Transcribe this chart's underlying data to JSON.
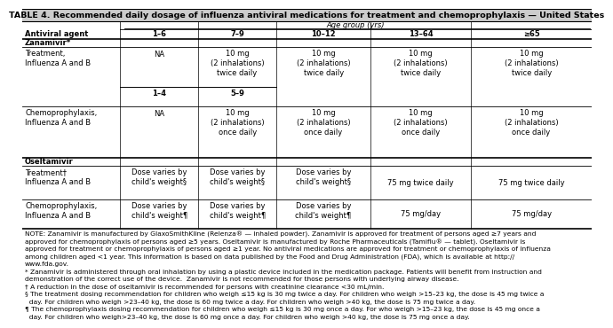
{
  "title": "TABLE 4. Recommended daily dosage of influenza antiviral medications for treatment and chemoprophylaxis — United States",
  "col_header_age": "Age group (yrs)",
  "col_headers": [
    "Antiviral agent",
    "1–6",
    "7–9",
    "10–12",
    "13–64",
    "≥65"
  ],
  "sub_headers_zanamivir": [
    "1–4",
    "5–9"
  ],
  "rows": [
    {
      "section": "Zanamivir*",
      "label": "Treatment,\nInfluenza A and B",
      "cells": [
        "NA",
        "10 mg\n(2 inhalations)\ntwice daily",
        "10 mg\n(2 inhalations)\ntwice daily",
        "10 mg\n(2 inhalations)\ntwice daily",
        "10 mg\n(2 inhalations)\ntwice daily"
      ]
    },
    {
      "section": null,
      "label": "Chemoprophylaxis,\nInfluenza A and B",
      "cells": [
        "NA",
        "10 mg\n(2 inhalations)\nonce daily",
        "10 mg\n(2 inhalations)\nonce daily",
        "10 mg\n(2 inhalations)\nonce daily",
        "10 mg\n(2 inhalations)\nonce daily"
      ]
    },
    {
      "section": "Oseltamivir",
      "label": "Treatment†\nInfluenza A and B",
      "cells": [
        "Dose varies by\nchild's weight§",
        "Dose varies by\nchild's weight§",
        "Dose varies by\nchild's weight§",
        "75 mg twice daily",
        "75 mg twice daily"
      ]
    },
    {
      "section": null,
      "label": "Chemoprophylaxis,\nInfluenza A and B",
      "cells": [
        "Dose varies by\nchild's weight¶",
        "Dose varies by\nchild's weight¶",
        "Dose varies by\nchild's weight¶",
        "75 mg/day",
        "75 mg/day"
      ]
    }
  ],
  "note_lines": [
    "NOTE: Zanamivir is manufactured by GlaxoSmithKline (Relenza® — inhaled powder). Zanamivir is approved for treatment of persons aged ≥7 years and",
    "approved for chemoprophylaxis of persons aged ≥5 years. Oseltamivir is manufactured by Roche Pharmaceuticals (Tamiflu® — tablet). Oseltamivir is",
    "approved for treatment or chemoprophylaxis of persons aged ≥1 year. No antiviral medications are approved for treatment or chemoprophylaxis of influenza",
    "among children aged <1 year. This information is based on data published by the Food and Drug Administration (FDA), which is available at http://",
    "www.fda.gov.",
    "* Zanamivir is administered through oral inhalation by using a plastic device included in the medication package. Patients will benefit from instruction and",
    "demonstration of the correct use of the device.  Zanamivir is not recommended for those persons with underlying airway disease.",
    "† A reduction in the dose of oseltamivir is recommended for persons with creatinine clearance <30 mL/min.",
    "§ The treatment dosing recommendation for children who weigh ≤15 kg is 30 mg twice a day. For children who weigh >15–23 kg, the dose is 45 mg twice a",
    "  day. For children who weigh >23–40 kg, the dose is 60 mg twice a day. For children who weigh >40 kg, the dose is 75 mg twice a day.",
    "¶ The chemoprophylaxis dosing recommendation for children who weigh ≤15 kg is 30 mg once a day. For who weigh >15–23 kg, the dose is 45 mg once a",
    "  day. For children who weigh>23–40 kg, the dose is 60 mg once a day. For children who weigh >40 kg, the dose is 75 mg once a day."
  ],
  "bg_color": "#ffffff",
  "title_bg": "#d0d0d0",
  "fs_title": 6.8,
  "fs_body": 6.0,
  "fs_note": 5.4
}
